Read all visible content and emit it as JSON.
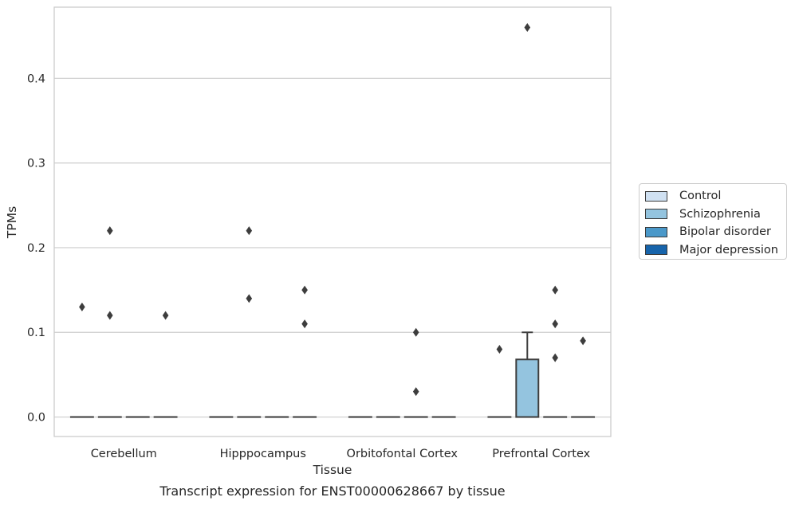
{
  "chart_data": {
    "type": "box",
    "title": "",
    "caption": "Transcript expression for ENST00000628667 by tissue",
    "xlabel": "Tissue",
    "ylabel": "TPMs",
    "ylim": [
      -0.023,
      0.484
    ],
    "yticks": [
      0.0,
      0.1,
      0.2,
      0.3,
      0.4
    ],
    "ytick_labels": [
      "0.0",
      "0.1",
      "0.2",
      "0.3",
      "0.4"
    ],
    "grid": true,
    "legend_position": "right",
    "categories": [
      "Cerebellum",
      "Hipppocampus",
      "Orbitofontal Cortex",
      "Prefrontal Cortex"
    ],
    "series": [
      {
        "name": "Control",
        "color": "#d0e1f2",
        "boxes": [
          {
            "q1": 0,
            "median": 0,
            "q3": 0,
            "whisker_low": 0,
            "whisker_high": 0,
            "outliers": [
              0.13
            ]
          },
          {
            "q1": 0,
            "median": 0,
            "q3": 0,
            "whisker_low": 0,
            "whisker_high": 0,
            "outliers": []
          },
          {
            "q1": 0,
            "median": 0,
            "q3": 0,
            "whisker_low": 0,
            "whisker_high": 0,
            "outliers": []
          },
          {
            "q1": 0,
            "median": 0,
            "q3": 0,
            "whisker_low": 0,
            "whisker_high": 0,
            "outliers": [
              0.08
            ]
          }
        ]
      },
      {
        "name": "Schizophrenia",
        "color": "#94c4df",
        "boxes": [
          {
            "q1": 0,
            "median": 0,
            "q3": 0,
            "whisker_low": 0,
            "whisker_high": 0,
            "outliers": [
              0.22,
              0.12
            ]
          },
          {
            "q1": 0,
            "median": 0,
            "q3": 0,
            "whisker_low": 0,
            "whisker_high": 0,
            "outliers": [
              0.22,
              0.14
            ]
          },
          {
            "q1": 0,
            "median": 0,
            "q3": 0,
            "whisker_low": 0,
            "whisker_high": 0,
            "outliers": []
          },
          {
            "q1": 0,
            "median": 0,
            "q3": 0.068,
            "whisker_low": 0,
            "whisker_high": 0.1,
            "outliers": [
              0.46
            ]
          }
        ]
      },
      {
        "name": "Bipolar disorder",
        "color": "#4a98c9",
        "boxes": [
          {
            "q1": 0,
            "median": 0,
            "q3": 0,
            "whisker_low": 0,
            "whisker_high": 0,
            "outliers": []
          },
          {
            "q1": 0,
            "median": 0,
            "q3": 0,
            "whisker_low": 0,
            "whisker_high": 0,
            "outliers": []
          },
          {
            "q1": 0,
            "median": 0,
            "q3": 0,
            "whisker_low": 0,
            "whisker_high": 0,
            "outliers": [
              0.1,
              0.03
            ]
          },
          {
            "q1": 0,
            "median": 0,
            "q3": 0,
            "whisker_low": 0,
            "whisker_high": 0,
            "outliers": [
              0.15,
              0.11,
              0.07
            ]
          }
        ]
      },
      {
        "name": "Major depression",
        "color": "#1764ab",
        "boxes": [
          {
            "q1": 0,
            "median": 0,
            "q3": 0,
            "whisker_low": 0,
            "whisker_high": 0,
            "outliers": [
              0.12
            ]
          },
          {
            "q1": 0,
            "median": 0,
            "q3": 0,
            "whisker_low": 0,
            "whisker_high": 0,
            "outliers": [
              0.15,
              0.11
            ]
          },
          {
            "q1": 0,
            "median": 0,
            "q3": 0,
            "whisker_low": 0,
            "whisker_high": 0,
            "outliers": []
          },
          {
            "q1": 0,
            "median": 0,
            "q3": 0,
            "whisker_low": 0,
            "whisker_high": 0,
            "outliers": [
              0.09
            ]
          }
        ]
      }
    ]
  }
}
